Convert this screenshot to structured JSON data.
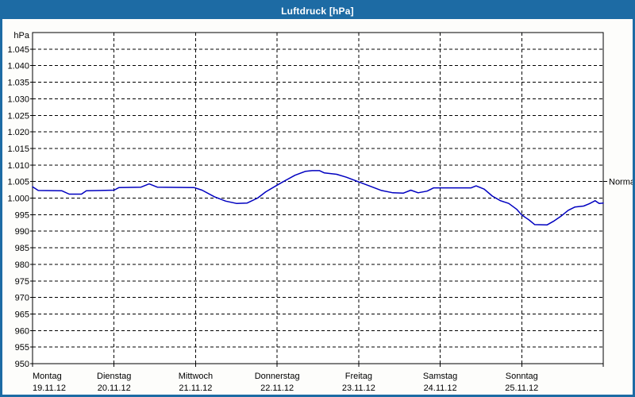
{
  "window": {
    "title": "Luftdruck [hPa]"
  },
  "colors": {
    "titlebar_bg": "#1d6ba4",
    "titlebar_text": "#ffffff",
    "window_border": "#1d6ba4",
    "chart_bg": "#fdfdfb",
    "plot_frame": "#000000",
    "grid": "#000000",
    "text": "#000000",
    "series_line": "#0000c0"
  },
  "chart_data": {
    "type": "line",
    "title": "Luftdruck [hPa]",
    "unit_label": "hPa",
    "grid": "on",
    "y_axis": {
      "min": 950,
      "max": 1050,
      "grid_step": 5,
      "ticks": [
        {
          "value": 1045,
          "label": "1.045"
        },
        {
          "value": 1040,
          "label": "1.040"
        },
        {
          "value": 1035,
          "label": "1.035"
        },
        {
          "value": 1030,
          "label": "1.030"
        },
        {
          "value": 1025,
          "label": "1.025"
        },
        {
          "value": 1020,
          "label": "1.020"
        },
        {
          "value": 1015,
          "label": "1.015"
        },
        {
          "value": 1010,
          "label": "1.010"
        },
        {
          "value": 1005,
          "label": "1.005"
        },
        {
          "value": 1000,
          "label": "1.000"
        },
        {
          "value": 995,
          "label": "995"
        },
        {
          "value": 990,
          "label": "990"
        },
        {
          "value": 985,
          "label": "985"
        },
        {
          "value": 980,
          "label": "980"
        },
        {
          "value": 975,
          "label": "975"
        },
        {
          "value": 970,
          "label": "970"
        },
        {
          "value": 965,
          "label": "965"
        },
        {
          "value": 960,
          "label": "960"
        },
        {
          "value": 955,
          "label": "955"
        },
        {
          "value": 950,
          "label": "950"
        }
      ]
    },
    "x_axis": {
      "span_days": 7,
      "days": [
        {
          "name": "Montag",
          "date": "19.11.12"
        },
        {
          "name": "Dienstag",
          "date": "20.11.12"
        },
        {
          "name": "Mittwoch",
          "date": "21.11.12"
        },
        {
          "name": "Donnerstag",
          "date": "22.11.12"
        },
        {
          "name": "Freitag",
          "date": "23.11.12"
        },
        {
          "name": "Samstag",
          "date": "24.11.12"
        },
        {
          "name": "Sonntag",
          "date": "25.11.12"
        }
      ]
    },
    "normal_marker": {
      "label": "Normal",
      "value": 1005
    },
    "series": [
      {
        "name": "Luftdruck",
        "color": "#0000c0",
        "points": [
          [
            0.0,
            1003.4
          ],
          [
            0.07,
            1002.3
          ],
          [
            0.36,
            1002.2
          ],
          [
            0.45,
            1001.2
          ],
          [
            0.6,
            1001.2
          ],
          [
            0.66,
            1002.2
          ],
          [
            1.0,
            1002.4
          ],
          [
            1.06,
            1003.2
          ],
          [
            1.33,
            1003.3
          ],
          [
            1.43,
            1004.3
          ],
          [
            1.53,
            1003.3
          ],
          [
            1.98,
            1003.2
          ],
          [
            2.08,
            1002.4
          ],
          [
            2.23,
            1000.4
          ],
          [
            2.37,
            999.1
          ],
          [
            2.5,
            998.4
          ],
          [
            2.63,
            998.5
          ],
          [
            2.76,
            1000.0
          ],
          [
            2.86,
            1001.9
          ],
          [
            3.0,
            1003.9
          ],
          [
            3.1,
            1005.3
          ],
          [
            3.22,
            1006.9
          ],
          [
            3.35,
            1008.1
          ],
          [
            3.43,
            1008.3
          ],
          [
            3.52,
            1008.3
          ],
          [
            3.58,
            1007.6
          ],
          [
            3.73,
            1007.2
          ],
          [
            3.85,
            1006.3
          ],
          [
            4.0,
            1004.9
          ],
          [
            4.13,
            1003.7
          ],
          [
            4.28,
            1002.3
          ],
          [
            4.42,
            1001.6
          ],
          [
            4.55,
            1001.5
          ],
          [
            4.64,
            1002.4
          ],
          [
            4.73,
            1001.6
          ],
          [
            4.84,
            1002.1
          ],
          [
            4.92,
            1003.1
          ],
          [
            5.38,
            1003.1
          ],
          [
            5.44,
            1003.7
          ],
          [
            5.54,
            1002.7
          ],
          [
            5.64,
            1000.6
          ],
          [
            5.74,
            999.2
          ],
          [
            5.84,
            998.4
          ],
          [
            5.94,
            996.6
          ],
          [
            6.0,
            994.9
          ],
          [
            6.09,
            993.4
          ],
          [
            6.16,
            992.0
          ],
          [
            6.31,
            991.9
          ],
          [
            6.39,
            993.0
          ],
          [
            6.48,
            994.5
          ],
          [
            6.57,
            996.3
          ],
          [
            6.65,
            997.3
          ],
          [
            6.76,
            997.6
          ],
          [
            6.83,
            998.3
          ],
          [
            6.9,
            999.2
          ],
          [
            6.95,
            998.4
          ],
          [
            7.0,
            998.5
          ]
        ]
      }
    ]
  }
}
